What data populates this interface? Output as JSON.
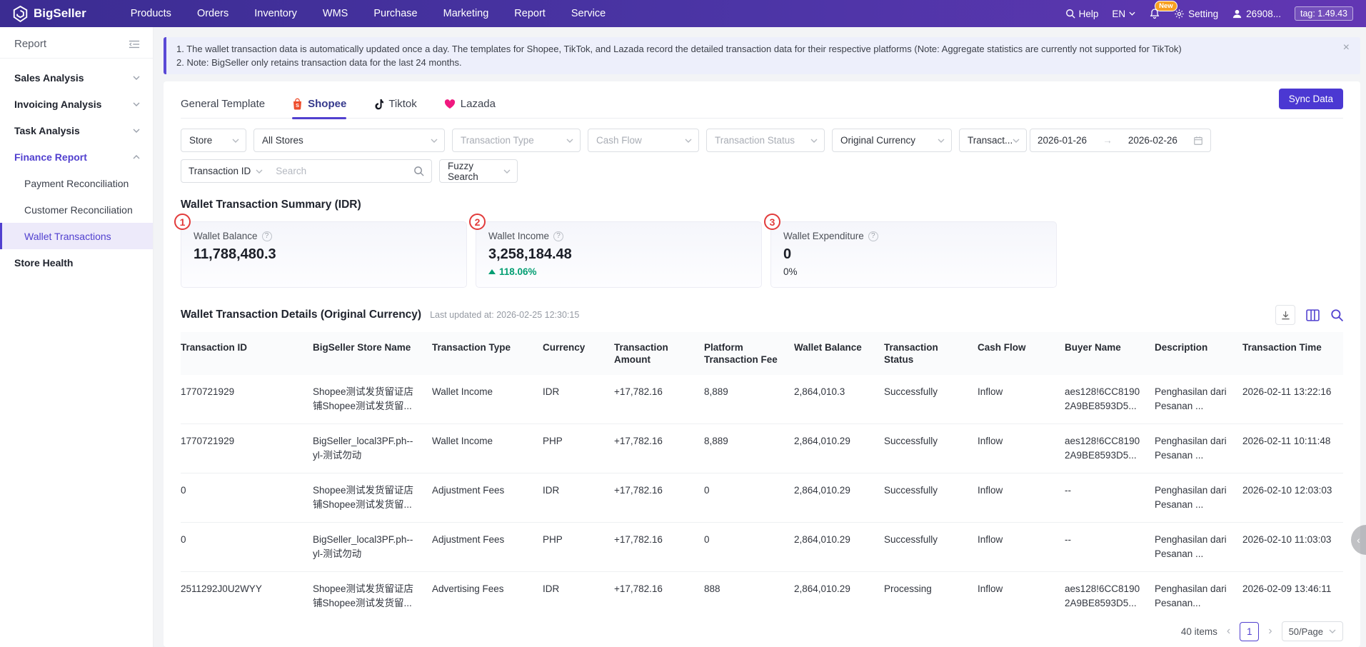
{
  "colors": {
    "accent_purple": "#5140cf",
    "nav_purple_start": "#3b2c92",
    "nav_purple_end": "#6236b3",
    "sync_button": "#4b38d2",
    "positive_green": "#049e73",
    "annotation_red": "#e23b3b",
    "shopee_orange": "#ee4d2d",
    "tiktok_black": "#161823",
    "lazada_pink": "#f0187f",
    "notice_bg": "#edeffb",
    "selected_item_bg": "#edeafa"
  },
  "topnav": {
    "brand": "BigSeller",
    "menu": [
      "Products",
      "Orders",
      "Inventory",
      "WMS",
      "Purchase",
      "Marketing",
      "Report",
      "Service"
    ],
    "help": "Help",
    "language": "EN",
    "new_badge": "New",
    "setting": "Setting",
    "user": "26908...",
    "version_tag": "tag: 1.49.43"
  },
  "sidebar": {
    "title": "Report",
    "items": [
      {
        "label": "Sales Analysis",
        "type": "group",
        "chevron": "down"
      },
      {
        "label": "Invoicing Analysis",
        "type": "group",
        "chevron": "down"
      },
      {
        "label": "Task Analysis",
        "type": "group",
        "chevron": "down"
      },
      {
        "label": "Finance Report",
        "type": "group",
        "chevron": "up",
        "highlight": true
      },
      {
        "label": "Payment Reconciliation",
        "type": "sub"
      },
      {
        "label": "Customer Reconciliation",
        "type": "sub"
      },
      {
        "label": "Wallet Transactions",
        "type": "sub",
        "selected": true
      },
      {
        "label": "Store Health",
        "type": "group",
        "chevron": "none"
      }
    ]
  },
  "notice": {
    "line1": "1. The wallet transaction data is automatically updated once a day. The templates for Shopee, TikTok, and Lazada record the detailed transaction data for their respective platforms (Note: Aggregate statistics are currently not supported for TikTok)",
    "line2": "2. Note: BigSeller only retains transaction data for the last 24 months.",
    "close": "×"
  },
  "tabs": [
    {
      "label": "General Template",
      "icon": "none",
      "active": false
    },
    {
      "label": "Shopee",
      "icon": "shopee",
      "active": true
    },
    {
      "label": "Tiktok",
      "icon": "tiktok",
      "active": false
    },
    {
      "label": "Lazada",
      "icon": "lazada",
      "active": false
    }
  ],
  "sync_button_label": "Sync Data",
  "filters": {
    "row1": [
      {
        "label": "Store",
        "filled": true
      },
      {
        "label": "All Stores",
        "filled": true
      },
      {
        "label": "Transaction Type",
        "filled": false
      },
      {
        "label": "Cash Flow",
        "filled": false
      },
      {
        "label": "Transaction Status",
        "filled": false
      },
      {
        "label": "Original Currency",
        "filled": true
      },
      {
        "label": "Transact...",
        "filled": true
      }
    ],
    "date_range": {
      "start": "2026-01-26",
      "end": "2026-02-26"
    },
    "search_category": "Transaction ID",
    "search_value": "",
    "search_placeholder": "Search",
    "fuzzy_select": "Fuzzy Search"
  },
  "summary": {
    "title": "Wallet Transaction Summary (IDR)",
    "cards": [
      {
        "badge": "1",
        "label": "Wallet Balance",
        "value": "11,788,480.3",
        "delta": "",
        "delta_dir": "none"
      },
      {
        "badge": "2",
        "label": "Wallet Income",
        "value": "3,258,184.48",
        "delta": "118.06%",
        "delta_dir": "up"
      },
      {
        "badge": "3",
        "label": "Wallet Expenditure",
        "value": "0",
        "delta": "0%",
        "delta_dir": "flat"
      }
    ]
  },
  "details": {
    "title": "Wallet Transaction Details (Original Currency)",
    "last_updated": "Last updated at: 2026-02-25 12:30:15",
    "columns": [
      "Transaction ID",
      "BigSeller Store Name",
      "Transaction Type",
      "Currency",
      "Transaction Amount",
      "Platform Transaction Fee",
      "Wallet Balance",
      "Transaction Status",
      "Cash Flow",
      "Buyer Name",
      "Description",
      "Transaction Time"
    ],
    "rows": [
      [
        "1770721929",
        "Shopee测试发货留证店铺Shopee测试发货留...",
        "Wallet Income",
        "IDR",
        "+17,782.16",
        "8,889",
        "2,864,010.3",
        "Successfully",
        "Inflow",
        "aes128!6CC81902A9BE8593D5...",
        "Penghasilan dari Pesanan ...",
        "2026-02-11 13:22:16"
      ],
      [
        "1770721929",
        "BigSeller_local3PF.ph--yl-测试勿动",
        "Wallet Income",
        "PHP",
        "+17,782.16",
        "8,889",
        "2,864,010.29",
        "Successfully",
        "Inflow",
        "aes128!6CC81902A9BE8593D5...",
        "Penghasilan dari Pesanan ...",
        "2026-02-11 10:11:48"
      ],
      [
        "0",
        "Shopee测试发货留证店铺Shopee测试发货留...",
        "Adjustment Fees",
        "IDR",
        "+17,782.16",
        "0",
        "2,864,010.29",
        "Successfully",
        "Inflow",
        "--",
        "Penghasilan dari Pesanan ...",
        "2026-02-10 12:03:03"
      ],
      [
        "0",
        "BigSeller_local3PF.ph--yl-测试勿动",
        "Adjustment Fees",
        "PHP",
        "+17,782.16",
        "0",
        "2,864,010.29",
        "Successfully",
        "Inflow",
        "--",
        "Penghasilan dari Pesanan ...",
        "2026-02-10 11:03:03"
      ],
      [
        "2511292J0U2WYY",
        "Shopee测试发货留证店铺Shopee测试发货留...",
        "Advertising Fees",
        "IDR",
        "+17,782.16",
        "888",
        "2,864,010.29",
        "Processing",
        "Inflow",
        "aes128!6CC81902A9BE8593D5...",
        "Penghasilan dari Pesanan...",
        "2026-02-09 13:46:11"
      ]
    ]
  },
  "pagination": {
    "total": "40 items",
    "prev": "‹",
    "current_page": "1",
    "next": "›",
    "page_size": "50/Page"
  },
  "drawer_handle": "‹"
}
